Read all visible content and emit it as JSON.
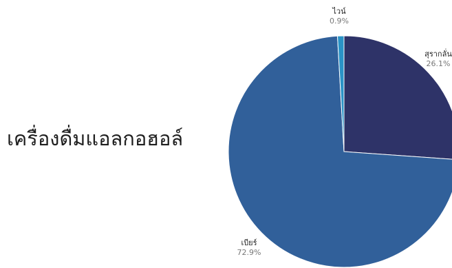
{
  "chart_data": {
    "type": "pie",
    "title": "เครื่องดื่มแอลกอฮอล์",
    "slices": [
      {
        "label": "สุรากลั่น",
        "value": 26.1,
        "value_label": "26.1%",
        "color": "#2e3368"
      },
      {
        "label": "เบียร์",
        "value": 72.9,
        "value_label": "72.9%",
        "color": "#31609a"
      },
      {
        "label": "ไวน์",
        "value": 0.9,
        "value_label": "0.9%",
        "color": "#2a93c6"
      }
    ]
  }
}
